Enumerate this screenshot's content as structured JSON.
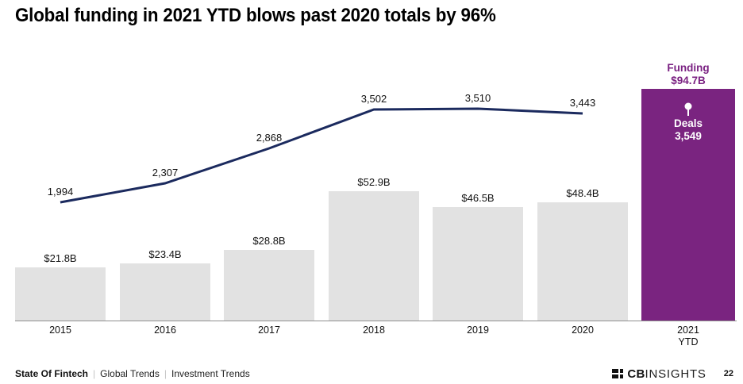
{
  "title": "Global funding in 2021 YTD blows past 2020 totals by 96%",
  "colors": {
    "accent_purple": "#7A2480",
    "purple_text": "#7A2182",
    "line_navy": "#1B2A5E",
    "bar_gray": "#E2E2E2",
    "axis_gray": "#8F8F8F"
  },
  "chart_data": {
    "type": "combo_bar_line",
    "title": "Global funding in 2021 YTD blows past 2020 totals by 96%",
    "categories": [
      "2015",
      "2016",
      "2017",
      "2018",
      "2019",
      "2020",
      "2021 YTD"
    ],
    "categories_display": [
      "2015",
      "2016",
      "2017",
      "2018",
      "2019",
      "2020",
      "2021\nYTD"
    ],
    "series": [
      {
        "name": "Funding ($B)",
        "type": "bar",
        "values": [
          21.8,
          23.4,
          28.8,
          52.9,
          46.5,
          48.4,
          94.7
        ],
        "labels": [
          "$21.8B",
          "$23.4B",
          "$28.8B",
          "$52.9B",
          "$46.5B",
          "$48.4B",
          "$94.7B"
        ]
      },
      {
        "name": "Deals",
        "type": "line",
        "values": [
          1994,
          2307,
          2868,
          3502,
          3510,
          3443,
          3549
        ],
        "labels": [
          "1,994",
          "2,307",
          "2,868",
          "3,502",
          "3,510",
          "3,443",
          "3,549"
        ]
      }
    ],
    "highlight": {
      "category": "2021 YTD",
      "funding_title": "Funding",
      "funding_value": "$94.7B",
      "deals_title": "Deals",
      "deals_value": "3,549"
    },
    "layout_hints": {
      "grid": "off",
      "legend": "none",
      "highlight_last_bar": true
    }
  },
  "footer": {
    "breadcrumb": [
      "State Of Fintech",
      "Global Trends",
      "Investment Trends"
    ],
    "separator": "|",
    "brand_bold": "CB",
    "brand_light": "INSIGHTS",
    "page_number": "22"
  }
}
